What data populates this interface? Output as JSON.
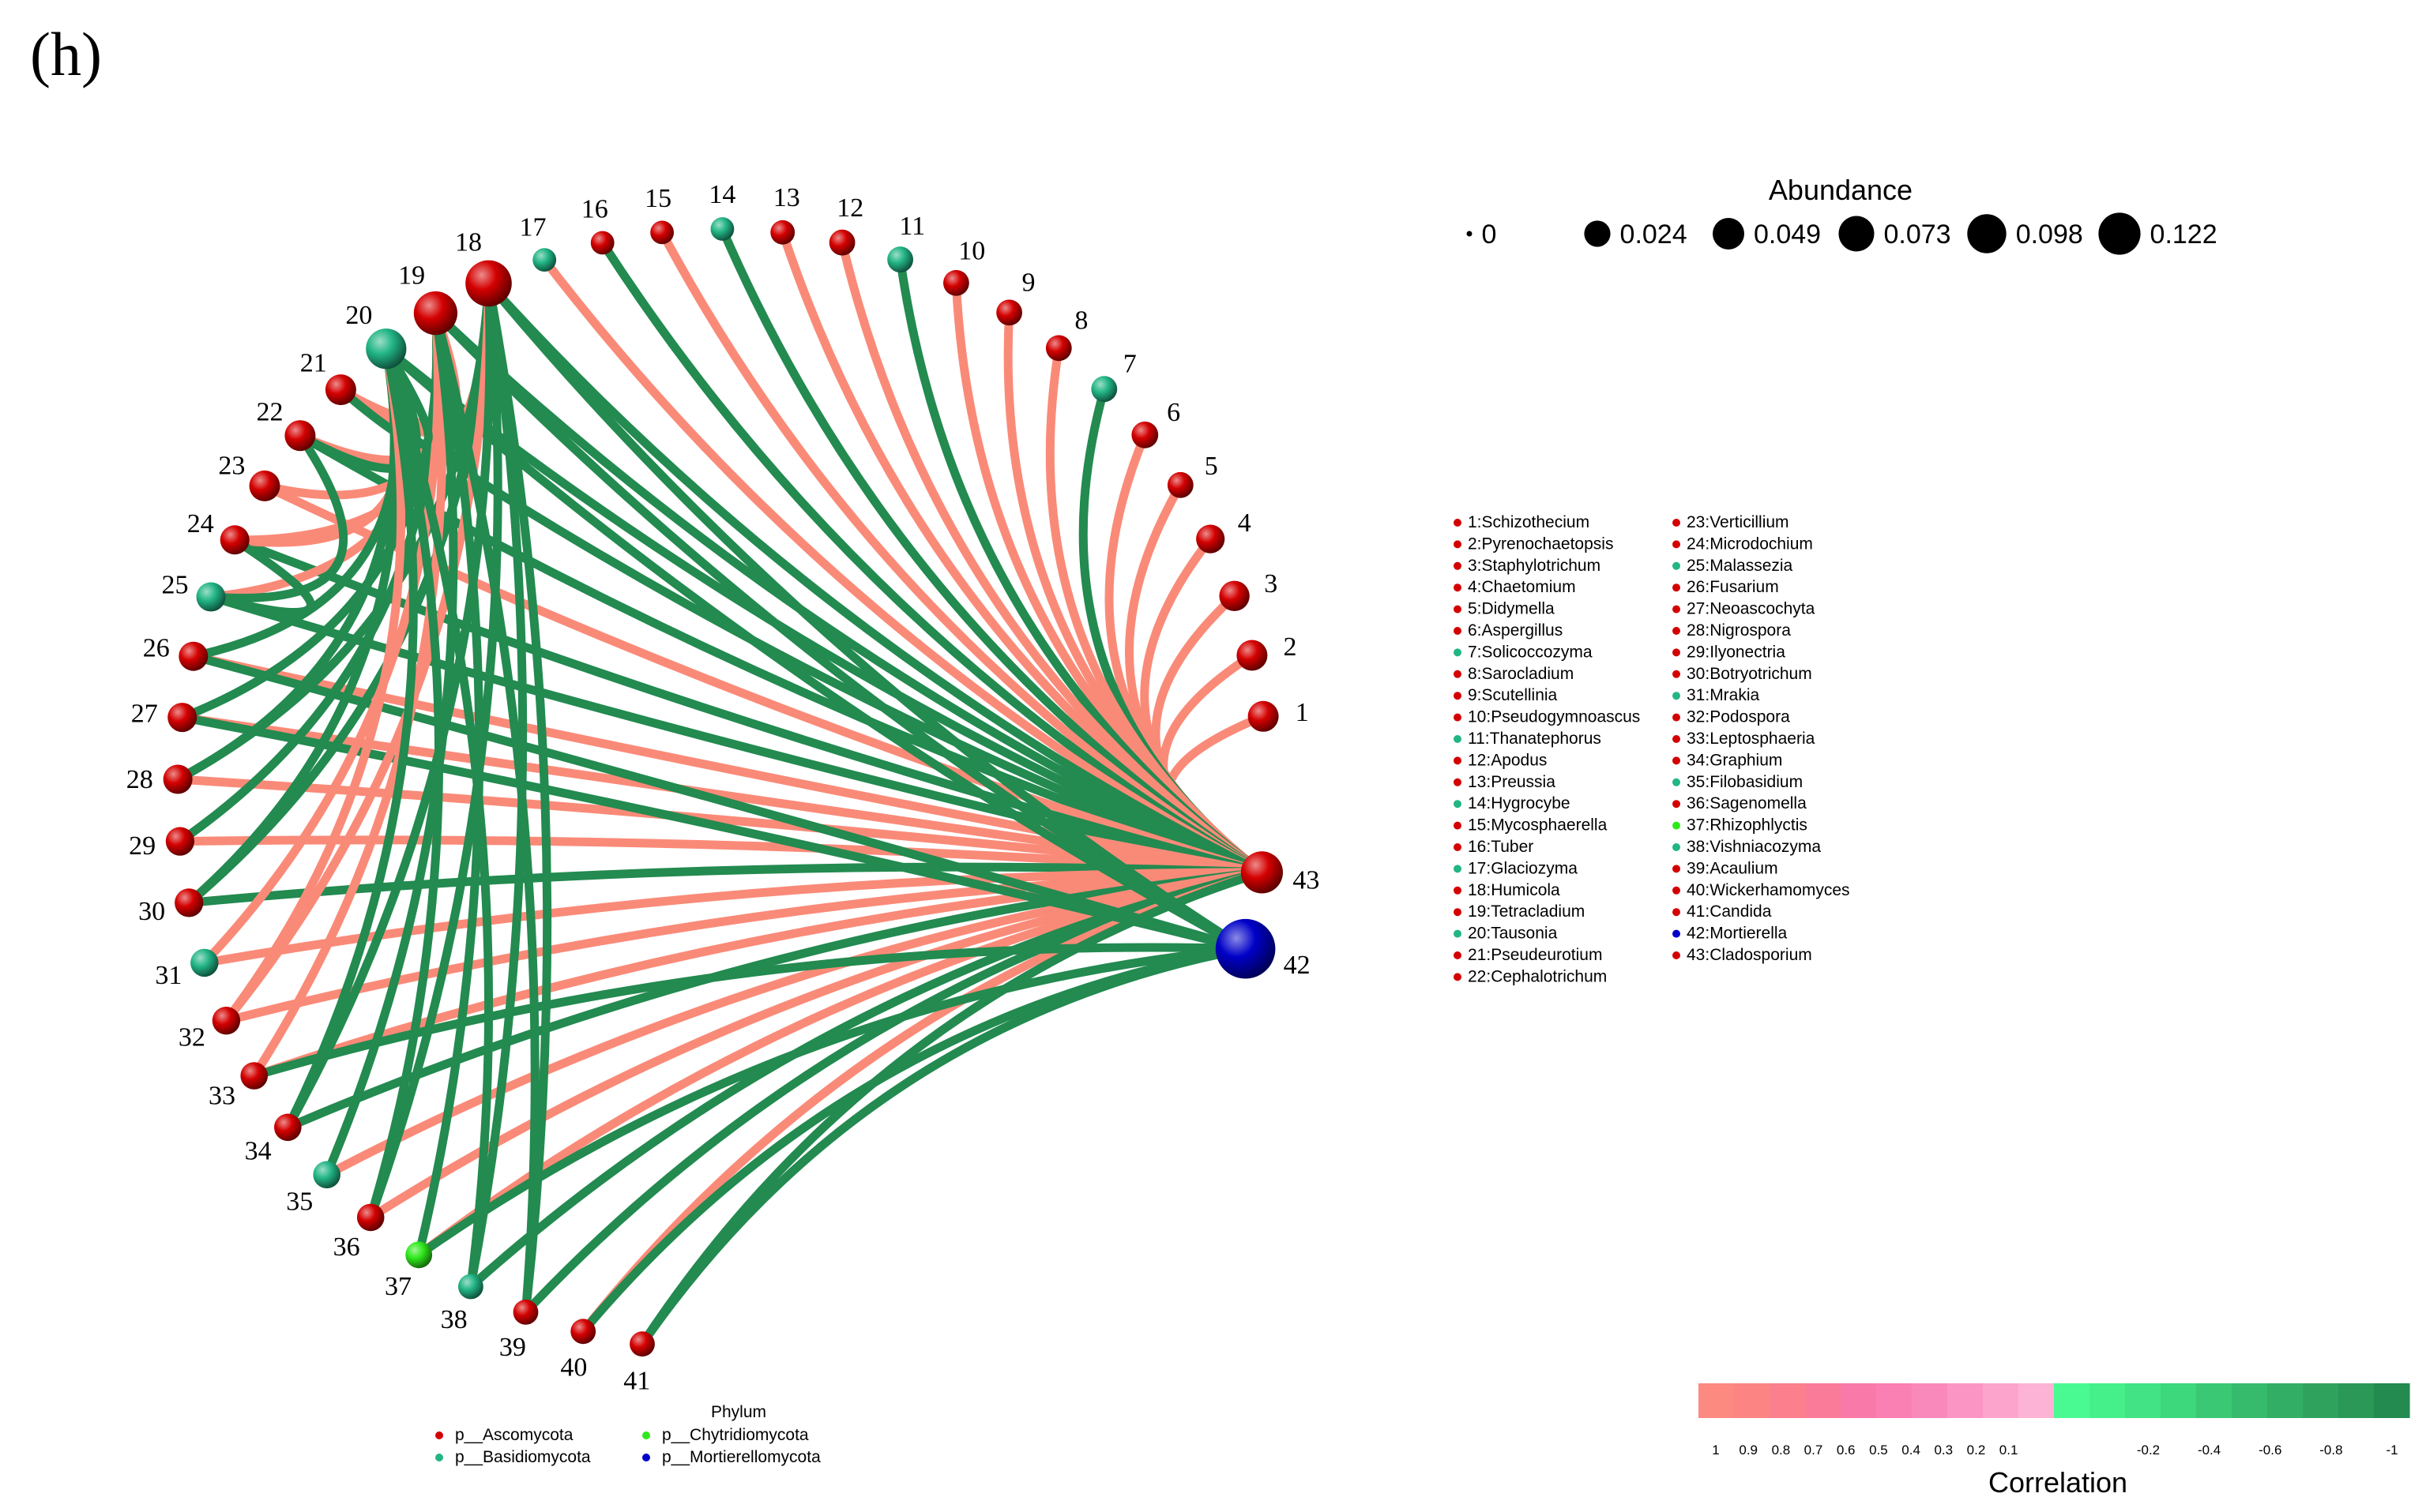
{
  "panel_label": "(h)",
  "colors": {
    "ascomycota": "#d40000",
    "basidiomycota": "#22b585",
    "chytridiomycota": "#2ee81a",
    "mortierellomycota": "#0000c8",
    "positive_edge": "#fa8a78",
    "negative_edge": "#238a50"
  },
  "nodes": [
    {
      "id": 1,
      "label": "1:Schizothecium",
      "phylum": "ascomycota",
      "abundance": 0.016
    },
    {
      "id": 2,
      "label": "2:Pyrenochaetopsis",
      "phylum": "ascomycota",
      "abundance": 0.016
    },
    {
      "id": 3,
      "label": "3:Staphylotrichum",
      "phylum": "ascomycota",
      "abundance": 0.015
    },
    {
      "id": 4,
      "label": "4:Chaetomium",
      "phylum": "ascomycota",
      "abundance": 0.012
    },
    {
      "id": 5,
      "label": "5:Didymella",
      "phylum": "ascomycota",
      "abundance": 0.008
    },
    {
      "id": 6,
      "label": "6:Aspergillus",
      "phylum": "ascomycota",
      "abundance": 0.009
    },
    {
      "id": 7,
      "label": "7:Solicoccozyma",
      "phylum": "basidiomycota",
      "abundance": 0.008
    },
    {
      "id": 8,
      "label": "8:Sarocladium",
      "phylum": "ascomycota",
      "abundance": 0.008
    },
    {
      "id": 9,
      "label": "9:Scutellinia",
      "phylum": "ascomycota",
      "abundance": 0.008
    },
    {
      "id": 10,
      "label": "10:Pseudogymnoascus",
      "phylum": "ascomycota",
      "abundance": 0.008
    },
    {
      "id": 11,
      "label": "11:Thanatephorus",
      "phylum": "basidiomycota",
      "abundance": 0.008
    },
    {
      "id": 12,
      "label": "12:Apodus",
      "phylum": "ascomycota",
      "abundance": 0.008
    },
    {
      "id": 13,
      "label": "13:Preussia",
      "phylum": "ascomycota",
      "abundance": 0.006
    },
    {
      "id": 14,
      "label": "14:Hygrocybe",
      "phylum": "basidiomycota",
      "abundance": 0.005
    },
    {
      "id": 15,
      "label": "15:Mycosphaerella",
      "phylum": "ascomycota",
      "abundance": 0.005
    },
    {
      "id": 16,
      "label": "16:Tuber",
      "phylum": "ascomycota",
      "abundance": 0.005
    },
    {
      "id": 17,
      "label": "17:Glaciozyma",
      "phylum": "basidiomycota",
      "abundance": 0.005
    },
    {
      "id": 18,
      "label": "18:Humicola",
      "phylum": "ascomycota",
      "abundance": 0.06
    },
    {
      "id": 19,
      "label": "19:Tetracladium",
      "phylum": "ascomycota",
      "abundance": 0.05
    },
    {
      "id": 20,
      "label": "20:Tausonia",
      "phylum": "basidiomycota",
      "abundance": 0.04
    },
    {
      "id": 21,
      "label": "21:Pseudeurotium",
      "phylum": "ascomycota",
      "abundance": 0.016
    },
    {
      "id": 22,
      "label": "22:Cephalotrichum",
      "phylum": "ascomycota",
      "abundance": 0.016
    },
    {
      "id": 23,
      "label": "23:Verticillium",
      "phylum": "ascomycota",
      "abundance": 0.016
    },
    {
      "id": 24,
      "label": "24:Microdochium",
      "phylum": "ascomycota",
      "abundance": 0.013
    },
    {
      "id": 25,
      "label": "25:Malassezia",
      "phylum": "basidiomycota",
      "abundance": 0.013
    },
    {
      "id": 26,
      "label": "26:Fusarium",
      "phylum": "ascomycota",
      "abundance": 0.013
    },
    {
      "id": 27,
      "label": "27:Neoascochyta",
      "phylum": "ascomycota",
      "abundance": 0.013
    },
    {
      "id": 28,
      "label": "28:Nigrospora",
      "phylum": "ascomycota",
      "abundance": 0.013
    },
    {
      "id": 29,
      "label": "29:Ilyonectria",
      "phylum": "ascomycota",
      "abundance": 0.012
    },
    {
      "id": 30,
      "label": "30:Botryotrichum",
      "phylum": "ascomycota",
      "abundance": 0.012
    },
    {
      "id": 31,
      "label": "31:Mrakia",
      "phylum": "basidiomycota",
      "abundance": 0.011
    },
    {
      "id": 32,
      "label": "32:Podospora",
      "phylum": "ascomycota",
      "abundance": 0.011
    },
    {
      "id": 33,
      "label": "33:Leptosphaeria",
      "phylum": "ascomycota",
      "abundance": 0.01
    },
    {
      "id": 34,
      "label": "34:Graphium",
      "phylum": "ascomycota",
      "abundance": 0.01
    },
    {
      "id": 35,
      "label": "35:Filobasidium",
      "phylum": "basidiomycota",
      "abundance": 0.01
    },
    {
      "id": 36,
      "label": "36:Sagenomella",
      "phylum": "ascomycota",
      "abundance": 0.01
    },
    {
      "id": 37,
      "label": "37:Rhizophlyctis",
      "phylum": "chytridiomycota",
      "abundance": 0.009
    },
    {
      "id": 38,
      "label": "38:Vishniacozyma",
      "phylum": "basidiomycota",
      "abundance": 0.007
    },
    {
      "id": 39,
      "label": "39:Acaulium",
      "phylum": "ascomycota",
      "abundance": 0.007
    },
    {
      "id": 40,
      "label": "40:Wickerhamomyces",
      "phylum": "ascomycota",
      "abundance": 0.007
    },
    {
      "id": 41,
      "label": "41:Candida",
      "phylum": "ascomycota",
      "abundance": 0.007
    },
    {
      "id": 42,
      "label": "42:Mortierella",
      "phylum": "mortierellomycota",
      "abundance": 0.12
    },
    {
      "id": 43,
      "label": "43:Cladosporium",
      "phylum": "ascomycota",
      "abundance": 0.045
    }
  ],
  "edges": [
    {
      "from": 43,
      "to": 1,
      "correlation": 0.9
    },
    {
      "from": 43,
      "to": 2,
      "correlation": 0.9
    },
    {
      "from": 43,
      "to": 3,
      "correlation": 0.9
    },
    {
      "from": 43,
      "to": 4,
      "correlation": 0.9
    },
    {
      "from": 43,
      "to": 5,
      "correlation": 0.9
    },
    {
      "from": 43,
      "to": 6,
      "correlation": 0.9
    },
    {
      "from": 43,
      "to": 7,
      "correlation": -0.9
    },
    {
      "from": 43,
      "to": 8,
      "correlation": 0.9
    },
    {
      "from": 43,
      "to": 9,
      "correlation": 0.9
    },
    {
      "from": 43,
      "to": 10,
      "correlation": 0.9
    },
    {
      "from": 43,
      "to": 11,
      "correlation": -0.9
    },
    {
      "from": 43,
      "to": 12,
      "correlation": 0.9
    },
    {
      "from": 43,
      "to": 13,
      "correlation": 0.9
    },
    {
      "from": 43,
      "to": 14,
      "correlation": -0.9
    },
    {
      "from": 43,
      "to": 15,
      "correlation": 0.9
    },
    {
      "from": 43,
      "to": 16,
      "correlation": -0.9
    },
    {
      "from": 43,
      "to": 17,
      "correlation": 0.9
    },
    {
      "from": 43,
      "to": 18,
      "correlation": -0.9
    },
    {
      "from": 43,
      "to": 19,
      "correlation": -0.9
    },
    {
      "from": 43,
      "to": 20,
      "correlation": -0.9
    },
    {
      "from": 43,
      "to": 21,
      "correlation": -0.9
    },
    {
      "from": 43,
      "to": 22,
      "correlation": -0.9
    },
    {
      "from": 43,
      "to": 23,
      "correlation": 0.9
    },
    {
      "from": 43,
      "to": 24,
      "correlation": -0.9
    },
    {
      "from": 43,
      "to": 25,
      "correlation": -0.9
    },
    {
      "from": 43,
      "to": 26,
      "correlation": 0.9
    },
    {
      "from": 43,
      "to": 27,
      "correlation": 0.9
    },
    {
      "from": 43,
      "to": 28,
      "correlation": 0.9
    },
    {
      "from": 43,
      "to": 29,
      "correlation": 0.9
    },
    {
      "from": 43,
      "to": 30,
      "correlation": -0.9
    },
    {
      "from": 43,
      "to": 31,
      "correlation": 0.9
    },
    {
      "from": 43,
      "to": 32,
      "correlation": 0.9
    },
    {
      "from": 43,
      "to": 33,
      "correlation": 0.9
    },
    {
      "from": 43,
      "to": 34,
      "correlation": -0.9
    },
    {
      "from": 43,
      "to": 35,
      "correlation": 0.9
    },
    {
      "from": 43,
      "to": 36,
      "correlation": 0.9
    },
    {
      "from": 43,
      "to": 37,
      "correlation": 0.9
    },
    {
      "from": 43,
      "to": 38,
      "correlation": -0.9
    },
    {
      "from": 43,
      "to": 39,
      "correlation": -0.9
    },
    {
      "from": 43,
      "to": 40,
      "correlation": 0.9
    },
    {
      "from": 43,
      "to": 41,
      "correlation": -0.9
    },
    {
      "from": 42,
      "to": 18,
      "correlation": -0.9
    },
    {
      "from": 42,
      "to": 19,
      "correlation": -0.9
    },
    {
      "from": 42,
      "to": 20,
      "correlation": -0.9
    },
    {
      "from": 42,
      "to": 26,
      "correlation": -0.9
    },
    {
      "from": 42,
      "to": 27,
      "correlation": -0.9
    },
    {
      "from": 42,
      "to": 33,
      "correlation": -0.9
    },
    {
      "from": 42,
      "to": 37,
      "correlation": -0.9
    },
    {
      "from": 42,
      "to": 40,
      "correlation": -0.9
    },
    {
      "from": 42,
      "to": 41,
      "correlation": -0.9
    },
    {
      "from": 18,
      "to": 21,
      "correlation": 0.9
    },
    {
      "from": 18,
      "to": 24,
      "correlation": 0.9
    },
    {
      "from": 18,
      "to": 28,
      "correlation": -0.9
    },
    {
      "from": 18,
      "to": 30,
      "correlation": -0.9
    },
    {
      "from": 18,
      "to": 32,
      "correlation": 0.9
    },
    {
      "from": 18,
      "to": 34,
      "correlation": -0.9
    },
    {
      "from": 18,
      "to": 36,
      "correlation": -0.9
    },
    {
      "from": 18,
      "to": 38,
      "correlation": -0.9
    },
    {
      "from": 18,
      "to": 39,
      "correlation": -0.9
    },
    {
      "from": 19,
      "to": 21,
      "correlation": 0.9
    },
    {
      "from": 19,
      "to": 22,
      "correlation": 0.9
    },
    {
      "from": 19,
      "to": 23,
      "correlation": 0.9
    },
    {
      "from": 19,
      "to": 25,
      "correlation": 0.9
    },
    {
      "from": 19,
      "to": 27,
      "correlation": -0.9
    },
    {
      "from": 19,
      "to": 29,
      "correlation": -0.9
    },
    {
      "from": 19,
      "to": 31,
      "correlation": 0.9
    },
    {
      "from": 19,
      "to": 33,
      "correlation": 0.9
    },
    {
      "from": 19,
      "to": 35,
      "correlation": -0.9
    },
    {
      "from": 19,
      "to": 37,
      "correlation": -0.9
    },
    {
      "from": 19,
      "to": 39,
      "correlation": -0.9
    },
    {
      "from": 20,
      "to": 21,
      "correlation": -0.9
    },
    {
      "from": 20,
      "to": 22,
      "correlation": -0.9
    },
    {
      "from": 20,
      "to": 24,
      "correlation": 0.9
    },
    {
      "from": 20,
      "to": 26,
      "correlation": -0.9
    },
    {
      "from": 20,
      "to": 28,
      "correlation": -0.9
    },
    {
      "from": 20,
      "to": 30,
      "correlation": -0.9
    },
    {
      "from": 20,
      "to": 32,
      "correlation": 0.9
    },
    {
      "from": 20,
      "to": 34,
      "correlation": -0.9
    },
    {
      "from": 20,
      "to": 36,
      "correlation": -0.9
    },
    {
      "from": 20,
      "to": 38,
      "correlation": -0.9
    },
    {
      "from": 25,
      "to": 22,
      "correlation": -0.9
    },
    {
      "from": 25,
      "to": 24,
      "correlation": -0.9
    }
  ],
  "legend": {
    "abundance": {
      "title": "Abundance",
      "items": [
        {
          "label": "0",
          "value": 0
        },
        {
          "label": "0.024",
          "value": 0.024
        },
        {
          "label": "0.049",
          "value": 0.049
        },
        {
          "label": "0.073",
          "value": 0.073
        },
        {
          "label": "0.098",
          "value": 0.098
        },
        {
          "label": "0.122",
          "value": 0.122
        }
      ]
    },
    "phylum": {
      "title": "Phylum",
      "items": [
        {
          "key": "ascomycota",
          "label": "p__Ascomycota"
        },
        {
          "key": "basidiomycota",
          "label": "p__Basidiomycota"
        },
        {
          "key": "chytridiomycota",
          "label": "p__Chytridiomycota"
        },
        {
          "key": "mortierellomycota",
          "label": "p__Mortierellomycota"
        }
      ]
    },
    "correlation": {
      "title": "Correlation",
      "ticks": [
        "1",
        "0.9",
        "0.8",
        "0.7",
        "0.6",
        "0.5",
        "0.4",
        "0.3",
        "0.2",
        "0.1",
        "-0.2",
        "-0.4",
        "-0.6",
        "-0.8",
        "-1"
      ],
      "positive_swatches": [
        "#fc8a80",
        "#fc8584",
        "#fb7f8d",
        "#fa7a9a",
        "#f97aa8",
        "#fa7fb2",
        "#fa89bb",
        "#fb96c4",
        "#fca4cc",
        "#fdb3d5"
      ],
      "negative_swatches": [
        "#49fa92",
        "#45f08b",
        "#41e384",
        "#3dd77c",
        "#3ac874",
        "#36ba6c",
        "#32ae65",
        "#2fa35e",
        "#2b9857",
        "#238a50"
      ]
    }
  }
}
